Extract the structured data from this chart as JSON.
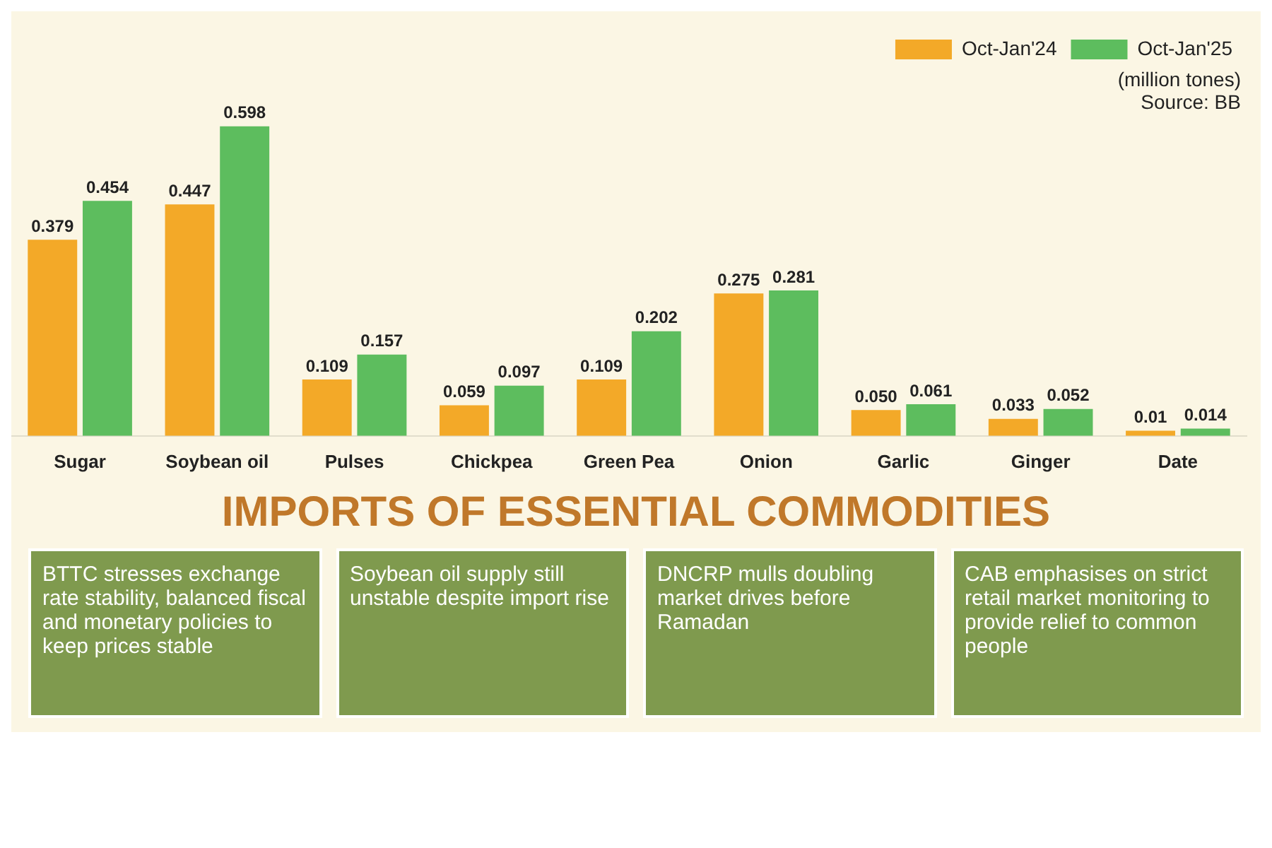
{
  "chart_data": {
    "type": "bar",
    "title": "IMPORTS OF ESSENTIAL COMMODITIES",
    "categories": [
      "Sugar",
      "Soybean oil",
      "Pulses",
      "Chickpea",
      "Green Pea",
      "Onion",
      "Garlic",
      "Ginger",
      "Date"
    ],
    "series": [
      {
        "name": "Oct-Jan'24",
        "color": "#f3a928",
        "values": [
          0.379,
          0.447,
          0.109,
          0.059,
          0.109,
          0.275,
          0.05,
          0.033,
          0.01
        ],
        "value_labels": [
          "0.379",
          "0.447",
          "0.109",
          "0.059",
          "0.109",
          "0.275",
          "0.050",
          "0.033",
          "0.01"
        ]
      },
      {
        "name": "Oct-Jan'25",
        "color": "#5dbd5e",
        "values": [
          0.454,
          0.598,
          0.157,
          0.097,
          0.202,
          0.281,
          0.061,
          0.052,
          0.014
        ],
        "value_labels": [
          "0.454",
          "0.598",
          "0.157",
          "0.097",
          "0.202",
          "0.281",
          "0.061",
          "0.052",
          "0.014"
        ]
      }
    ],
    "legend": "top right",
    "grid": false,
    "annotations": [
      "(million tones)",
      "Source: BB",
      "BTTC stresses exchange rate stability, balanced fiscal and monetary policies to keep prices stable",
      "Soybean oil supply still unstable despite import rise",
      "DNCRP mulls doubling market drives before Ramadan",
      "CAB  emphasises on strict retail market monitoring to provide relief to common people"
    ]
  }
}
